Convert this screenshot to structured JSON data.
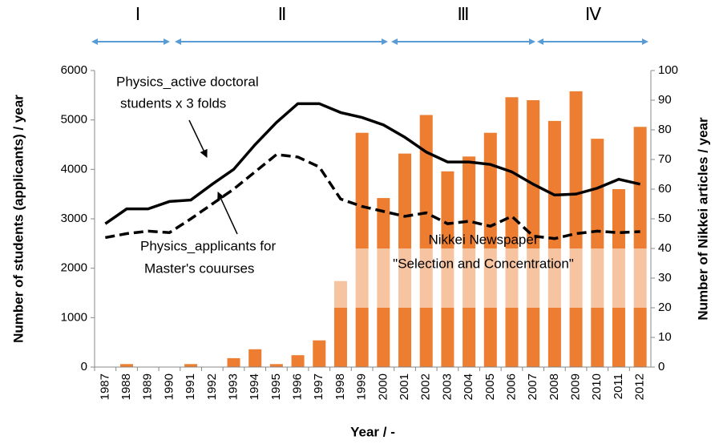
{
  "chart_data": {
    "type": "bar_line",
    "categories": [
      "1987",
      "1988",
      "1989",
      "1990",
      "1991",
      "1992",
      "1993",
      "1994",
      "1995",
      "1996",
      "1997",
      "1998",
      "1999",
      "2000",
      "2001",
      "2002",
      "2003",
      "2004",
      "2005",
      "2006",
      "2007",
      "2008",
      "2009",
      "2010",
      "2011",
      "2012"
    ],
    "series": [
      {
        "type": "bar",
        "axis": "y2",
        "color": "#ed7d31",
        "values": [
          0,
          1,
          0,
          0,
          1,
          0,
          3,
          6,
          1,
          4,
          9,
          29,
          79,
          57,
          72,
          85,
          66,
          71,
          79,
          91,
          90,
          83,
          93,
          77,
          60,
          81
        ]
      },
      {
        "type": "line",
        "color": "#000000",
        "dashed": false,
        "values": [
          2900,
          3200,
          3200,
          3350,
          3380,
          3700,
          4000,
          4500,
          4950,
          5330,
          5330,
          5150,
          5050,
          4900,
          4650,
          4350,
          4150,
          4150,
          4100,
          3950,
          3700,
          3480,
          3500,
          3620,
          3800,
          3700
        ]
      },
      {
        "type": "line",
        "color": "#000000",
        "dashed": true,
        "values": [
          2620,
          2700,
          2750,
          2720,
          3000,
          3300,
          3600,
          3950,
          4300,
          4250,
          4050,
          3400,
          3250,
          3150,
          3050,
          3120,
          2900,
          2950,
          2850,
          3050,
          2650,
          2600,
          2700,
          2750,
          2720,
          2740
        ]
      }
    ],
    "ylim": [
      0,
      6000
    ],
    "yticks": [
      0,
      1000,
      2000,
      3000,
      4000,
      5000,
      6000
    ],
    "y2lim": [
      0,
      100
    ],
    "y2ticks": [
      0,
      10,
      20,
      30,
      40,
      50,
      60,
      70,
      80,
      90,
      100
    ],
    "ylabel": "Number of students (applicants) / year",
    "y2label": "Number of Nikkei articles / year",
    "xlabel": "Year / -",
    "periods": [
      "Ⅰ",
      "Ⅱ",
      "Ⅲ",
      "Ⅳ"
    ],
    "annotations": [
      {
        "lines": [
          "Physics_active doctoral",
          "students x 3 folds"
        ]
      },
      {
        "lines": [
          "Physics_applicants for",
          "Master's couurses"
        ]
      },
      {
        "lines": [
          "Nikkei Newspaper",
          "\"Selection and Concentration\""
        ]
      }
    ]
  }
}
